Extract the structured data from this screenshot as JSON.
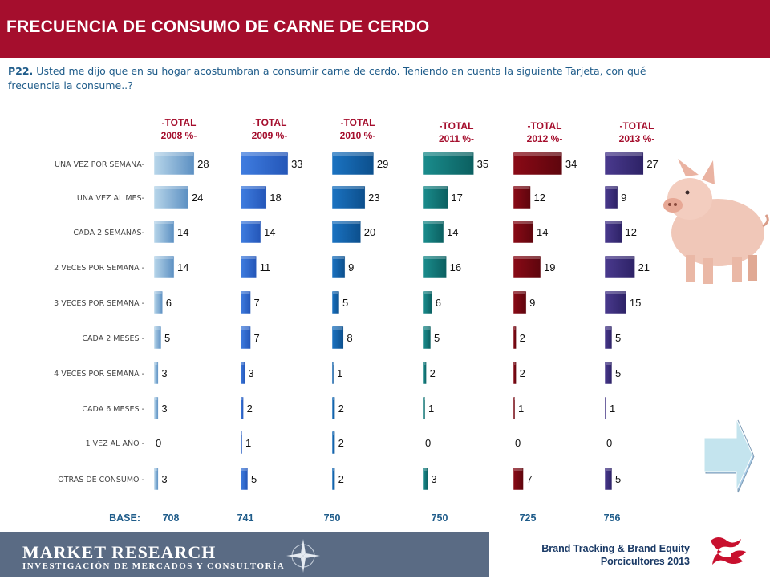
{
  "header": {
    "title": "FRECUENCIA DE CONSUMO DE CARNE DE  CERDO"
  },
  "question": {
    "number": "P22.",
    "text": "Usted me dijo que en su hogar acostumbran a consumir carne de cerdo. Teniendo en cuenta la siguiente Tarjeta, con qué frecuencia la consume..?"
  },
  "chart_data": {
    "type": "bar",
    "orientation": "horizontal",
    "categories": [
      "UNA VEZ POR SEMANA-",
      "UNA VEZ AL MES-",
      "CADA 2 SEMANAS-",
      "2 VECES POR SEMANA -",
      "3 VECES POR SEMANA -",
      "CADA 2 MESES -",
      "4 VECES POR SEMANA -",
      "CADA 6 MESES -",
      "1 VEZ AL AÑO  -",
      "OTRAS DE CONSUMO  -"
    ],
    "series": [
      {
        "name": "-TOTAL 2008 %-",
        "name_lines": [
          "-TOTAL",
          "2008 %-"
        ],
        "color": "#b8d6ea",
        "color_dark": "#5b8fc2",
        "values": [
          28,
          24,
          14,
          14,
          6,
          5,
          3,
          3,
          0,
          3
        ]
      },
      {
        "name": "-TOTAL 2009 %-",
        "name_lines": [
          "-TOTAL",
          "2009 %-"
        ],
        "color": "#3f7de0",
        "color_dark": "#2456b8",
        "values": [
          33,
          18,
          14,
          11,
          7,
          7,
          3,
          2,
          1,
          5
        ]
      },
      {
        "name": "-TOTAL 2010 %-",
        "name_lines": [
          "-TOTAL",
          "2010 %-"
        ],
        "color": "#1b73c2",
        "color_dark": "#0c4f8c",
        "values": [
          29,
          23,
          20,
          9,
          5,
          8,
          1,
          2,
          2,
          2
        ]
      },
      {
        "name": "-TOTAL 2011 %-",
        "name_lines": [
          "-TOTAL",
          "2011 %-"
        ],
        "color": "#1a8c8c",
        "color_dark": "#0b5f60",
        "values": [
          35,
          17,
          14,
          16,
          6,
          5,
          2,
          1,
          0,
          3
        ]
      },
      {
        "name": "-TOTAL 2012 %-",
        "name_lines": [
          "-TOTAL",
          "2012 %-"
        ],
        "color": "#8a0a16",
        "color_dark": "#5e050d",
        "values": [
          34,
          12,
          14,
          19,
          9,
          2,
          2,
          1,
          0,
          7
        ]
      },
      {
        "name": "-TOTAL 2013 %-",
        "name_lines": [
          "-TOTAL",
          "2013 %-"
        ],
        "color": "#4a3a8e",
        "color_dark": "#2d2266",
        "values": [
          27,
          9,
          12,
          21,
          15,
          5,
          5,
          1,
          0,
          5
        ]
      }
    ],
    "base": {
      "label": "BASE:",
      "values": [
        "708",
        "741",
        "750",
        "750",
        "725",
        "756"
      ]
    },
    "xlim": [
      0,
      35
    ],
    "grid": false,
    "legend": "top (column headers)"
  },
  "footer": {
    "brand_title": "MARKET RESEARCH",
    "brand_subtitle": "INVESTIGACIÓN DE MERCADOS Y CONSULTORÍA",
    "study_line1": "Brand Tracking & Brand Equity",
    "study_line2": "Porcicultores 2013"
  },
  "colors": {
    "header_bg": "#a50e2d",
    "series_header_text": "#a50e2d",
    "base_text": "#1f5c8a",
    "question_text": "#1f5c8a"
  },
  "icons": {
    "pig": "pig-image",
    "next": "next-arrow-icon",
    "compass": "compass-icon",
    "logo": "client-logo-icon"
  }
}
